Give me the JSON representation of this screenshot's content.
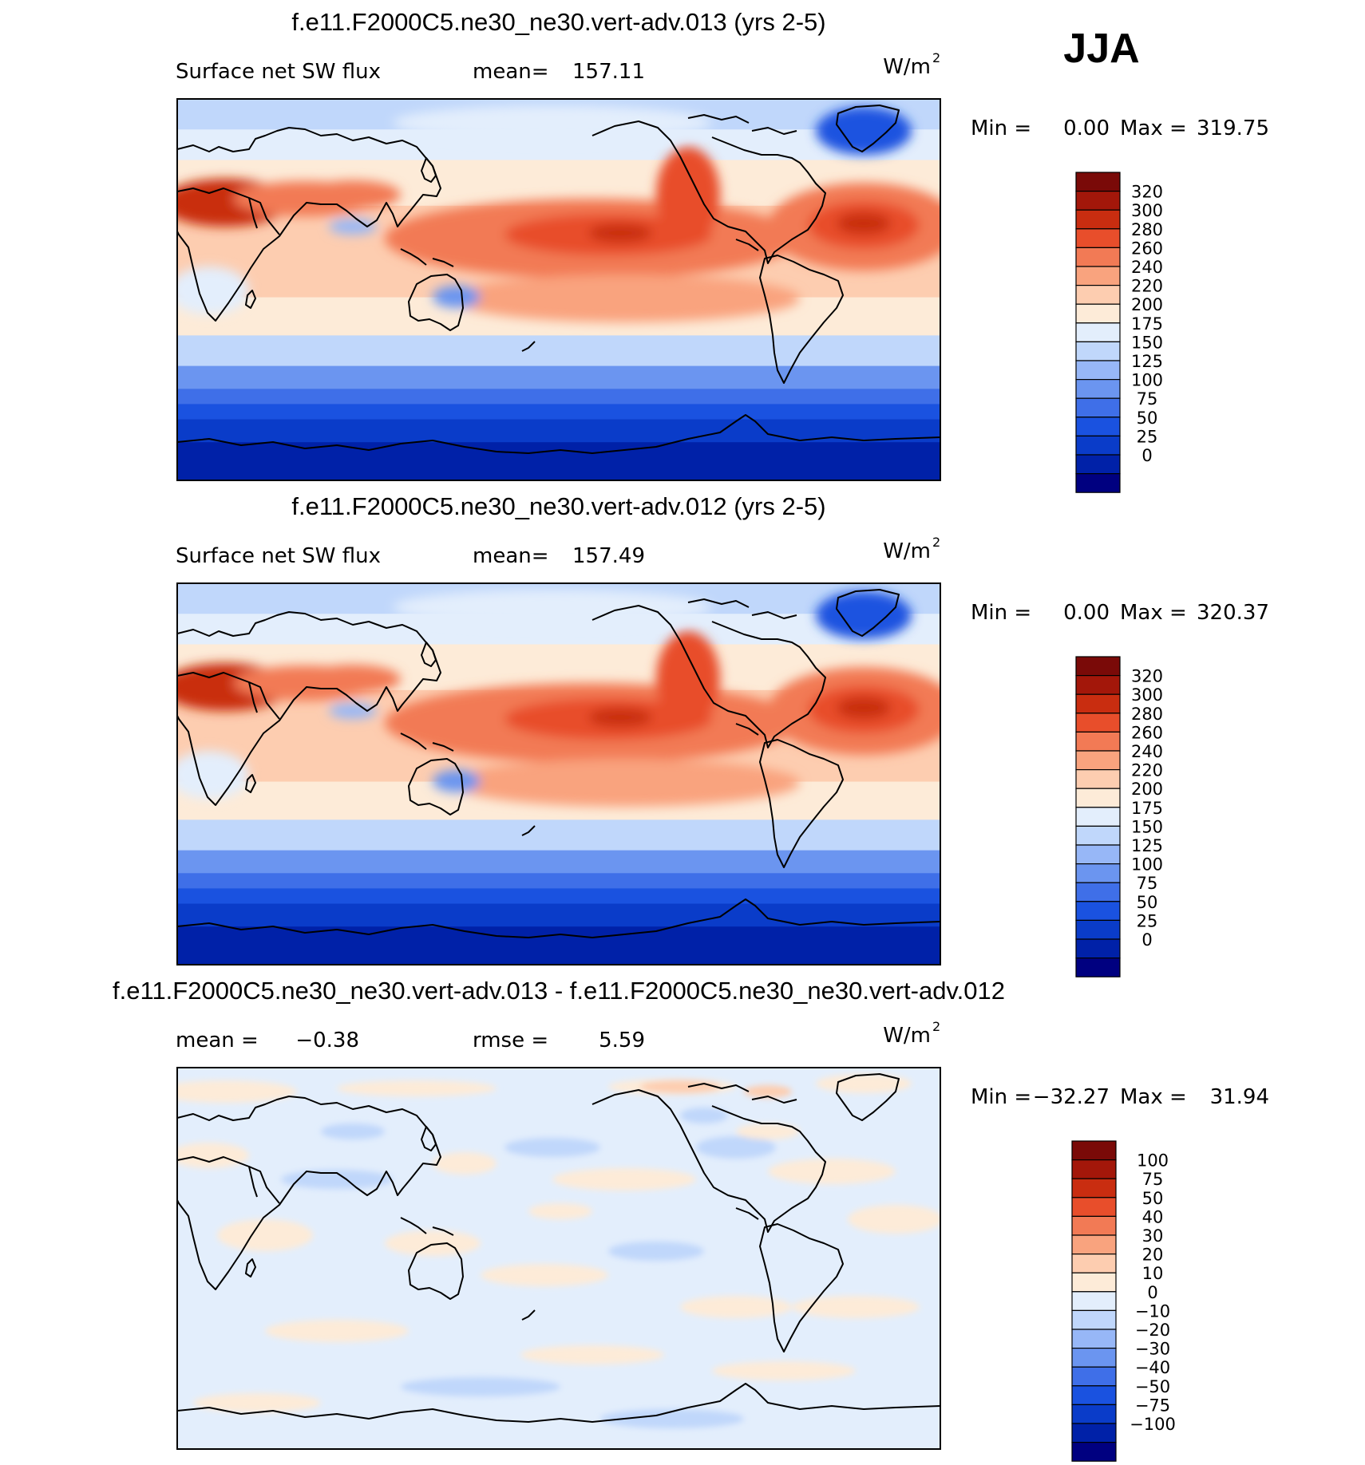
{
  "season_label": "JJA",
  "colors": {
    "top_scale": [
      "#000080",
      "#0021a8",
      "#0a3cc9",
      "#1a52e0",
      "#3f6fe8",
      "#6b95f0",
      "#97b7f7",
      "#c0d7fb",
      "#e3eefc",
      "#fdebd8",
      "#fdcdb0",
      "#f9a37e",
      "#f27a55",
      "#e84e2b",
      "#c92d10",
      "#a3170a",
      "#7a0a08"
    ],
    "diff_scale": [
      "#000080",
      "#0021a8",
      "#0a3cc9",
      "#1a52e0",
      "#3f6fe8",
      "#6b95f0",
      "#97b7f7",
      "#c0d7fb",
      "#e3eefc",
      "#fdebd8",
      "#fdcdb0",
      "#f9a37e",
      "#f27a55",
      "#e84e2b",
      "#c92d10",
      "#a3170a",
      "#7a0a08"
    ],
    "coast": "#000000"
  },
  "panels": [
    {
      "title": "f.e11.F2000C5.ne30_ne30.vert-adv.013 (yrs 2-5)",
      "left_label": "Surface net SW flux",
      "stat_label": "mean=",
      "stat_value": "157.11",
      "units": "W/m",
      "units_sup": "2",
      "min_label": "Min =",
      "min_value": "0.00",
      "max_label": "Max =",
      "max_value": "319.75",
      "colorbar_labels": [
        "320",
        "300",
        "280",
        "260",
        "240",
        "220",
        "200",
        "175",
        "150",
        "125",
        "100",
        "75",
        "50",
        "25",
        "0"
      ]
    },
    {
      "title": "f.e11.F2000C5.ne30_ne30.vert-adv.012 (yrs 2-5)",
      "left_label": "Surface net SW flux",
      "stat_label": "mean=",
      "stat_value": "157.49",
      "units": "W/m",
      "units_sup": "2",
      "min_label": "Min =",
      "min_value": "0.00",
      "max_label": "Max =",
      "max_value": "320.37",
      "colorbar_labels": [
        "320",
        "300",
        "280",
        "260",
        "240",
        "220",
        "200",
        "175",
        "150",
        "125",
        "100",
        "75",
        "50",
        "25",
        "0"
      ]
    },
    {
      "title": "f.e11.F2000C5.ne30_ne30.vert-adv.013 - f.e11.F2000C5.ne30_ne30.vert-adv.012",
      "left_label": "mean =",
      "left_value": "−0.38",
      "stat_label": "rmse =",
      "stat_value": "5.59",
      "units": "W/m",
      "units_sup": "2",
      "min_label": "Min =",
      "min_value": "−32.27",
      "max_label": "Max =",
      "max_value": "31.94",
      "colorbar_labels": [
        "100",
        "75",
        "50",
        "40",
        "30",
        "20",
        "10",
        "0",
        "−10",
        "−20",
        "−30",
        "−40",
        "−50",
        "−75",
        "−100"
      ]
    }
  ]
}
